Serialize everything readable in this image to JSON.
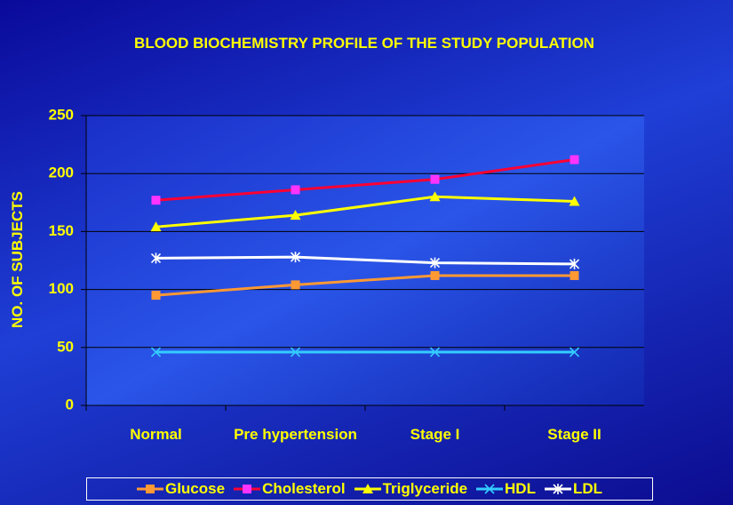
{
  "chart_data": {
    "type": "line",
    "title": "BLOOD BIOCHEMISTRY PROFILE OF THE STUDY POPULATION",
    "y_label": "NO. OF SUBJECTS",
    "categories": [
      "Normal",
      "Pre hypertension",
      "Stage I",
      "Stage II"
    ],
    "series": [
      {
        "name": "Glucose",
        "color": "#ff9933",
        "marker": "square",
        "values": [
          95,
          104,
          112,
          112
        ]
      },
      {
        "name": "Cholesterol",
        "color": "#ff0033",
        "marker_color": "#ff33ff",
        "marker": "square",
        "values": [
          177,
          186,
          195,
          212
        ]
      },
      {
        "name": "Triglyceride",
        "color": "#ffff00",
        "marker": "triangle",
        "values": [
          154,
          164,
          180,
          176
        ]
      },
      {
        "name": "HDL",
        "color": "#33ccff",
        "marker": "x",
        "values": [
          46,
          46,
          46,
          46
        ]
      },
      {
        "name": "LDL",
        "color": "#ffffff",
        "marker": "star",
        "values": [
          127,
          128,
          123,
          122
        ]
      }
    ],
    "ylim": [
      0,
      250
    ],
    "yticks": [
      0,
      50,
      100,
      150,
      200,
      250
    ],
    "grid": true,
    "legend": "bottom"
  }
}
